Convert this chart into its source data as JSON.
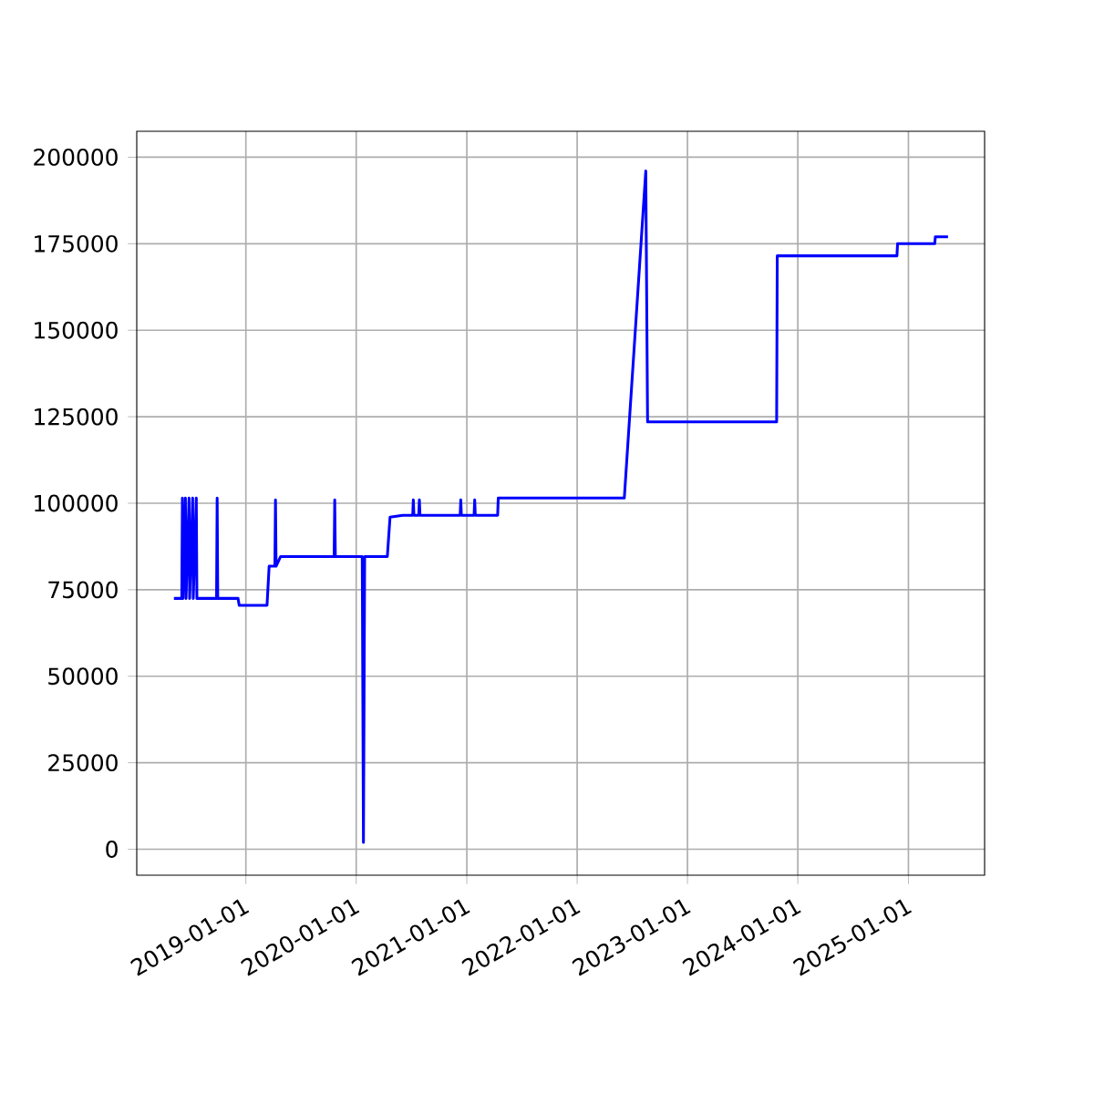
{
  "chart_data": {
    "type": "line",
    "color": "#0000ff",
    "marker": "none",
    "line_style": "solid",
    "grid": true,
    "x": [
      "2018-05-08",
      "2018-06-03",
      "2018-06-05",
      "2018-06-07",
      "2018-06-15",
      "2018-06-17",
      "2018-06-27",
      "2018-06-29",
      "2018-07-09",
      "2018-07-11",
      "2018-07-21",
      "2018-07-23",
      "2018-09-26",
      "2018-09-28",
      "2018-09-30",
      "2018-12-06",
      "2018-12-10",
      "2019-03-12",
      "2019-03-19",
      "2019-04-07",
      "2019-04-09",
      "2019-04-11",
      "2019-04-26",
      "2019-10-20",
      "2019-10-22",
      "2019-10-24",
      "2020-01-21",
      "2020-01-25",
      "2020-01-29",
      "2020-04-13",
      "2020-04-22",
      "2020-06-03",
      "2020-07-06",
      "2020-07-08",
      "2020-07-10",
      "2020-07-26",
      "2020-07-28",
      "2020-07-30",
      "2020-12-10",
      "2020-12-12",
      "2020-12-14",
      "2021-01-25",
      "2021-01-27",
      "2021-01-29",
      "2021-04-13",
      "2021-04-15",
      "2022-06-06",
      "2022-08-16",
      "2022-08-22",
      "2023-10-23",
      "2023-10-25",
      "2024-11-24",
      "2024-11-26",
      "2025-03-29",
      "2025-03-31",
      "2025-05-12"
    ],
    "values": [
      72500,
      72500,
      101500,
      72500,
      101500,
      72500,
      101500,
      72500,
      101500,
      72500,
      101500,
      72500,
      72500,
      101500,
      72500,
      72500,
      70500,
      70500,
      81800,
      81800,
      101000,
      81800,
      84600,
      84600,
      101000,
      84600,
      84600,
      2000,
      84600,
      84600,
      96000,
      96500,
      96500,
      101000,
      96500,
      96500,
      101000,
      96500,
      96500,
      101000,
      96500,
      96500,
      101000,
      96500,
      96500,
      101500,
      101500,
      196000,
      123500,
      123500,
      171500,
      171500,
      175000,
      175000,
      177000,
      177000
    ],
    "xlim": [
      "2018-01-05",
      "2025-09-10"
    ],
    "xticks": [
      "2019-01-01",
      "2020-01-01",
      "2021-01-01",
      "2022-01-01",
      "2023-01-01",
      "2024-01-01",
      "2025-01-01"
    ],
    "ylim": [
      -7500,
      207500
    ],
    "yticks": [
      0,
      25000,
      50000,
      75000,
      100000,
      125000,
      150000,
      175000,
      200000
    ]
  }
}
